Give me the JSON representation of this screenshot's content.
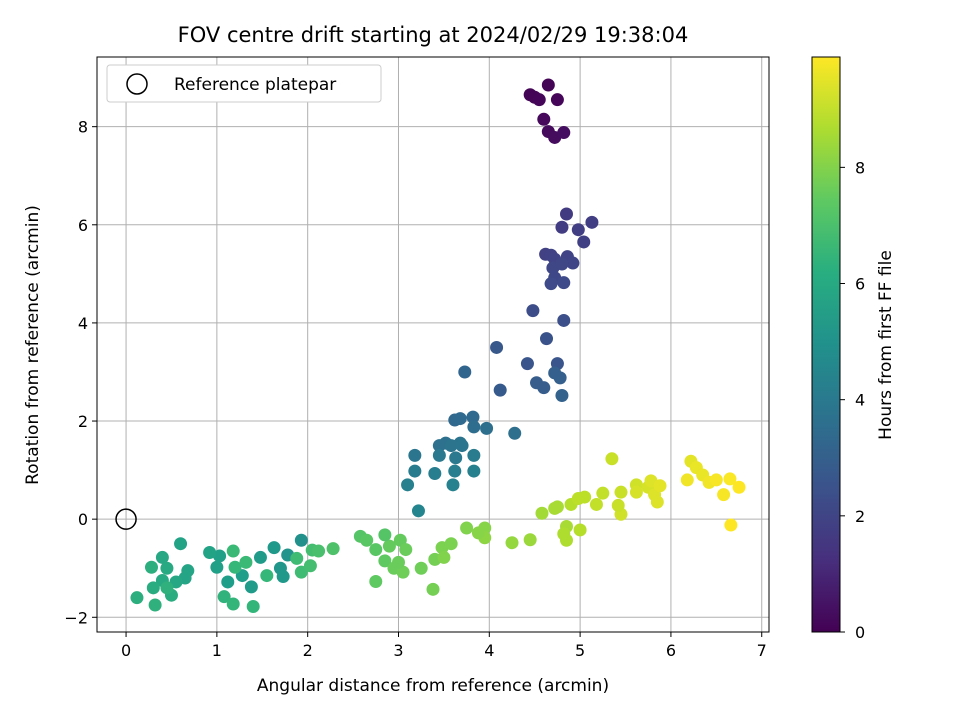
{
  "chart_data": {
    "type": "scatter",
    "title": "FOV centre drift starting at 2024/02/29 19:38:04",
    "xlabel": "Angular distance from reference (arcmin)",
    "ylabel": "Rotation from reference (arcmin)",
    "xlim": [
      -0.32,
      7.08
    ],
    "ylim": [
      -2.3,
      9.42
    ],
    "xticks": [
      0,
      1,
      2,
      3,
      4,
      5,
      6,
      7
    ],
    "yticks": [
      -2,
      0,
      2,
      4,
      6,
      8
    ],
    "grid": true,
    "legend": {
      "placement": "top-left",
      "entries": [
        "Reference platepar"
      ]
    },
    "reference_point": {
      "x": 0,
      "y": 0
    },
    "colorbar": {
      "label": "Hours from first FF file",
      "colormap": "viridis",
      "range": [
        0,
        9.9
      ],
      "ticks": [
        0,
        2,
        4,
        6,
        8
      ]
    },
    "series": [
      {
        "points": [
          [
            4.45,
            8.65,
            0.1
          ],
          [
            4.5,
            8.6,
            0.1
          ],
          [
            4.55,
            8.55,
            0.15
          ],
          [
            4.65,
            8.85,
            0.1
          ],
          [
            4.75,
            8.55,
            0.15
          ],
          [
            4.6,
            8.15,
            0.2
          ],
          [
            4.65,
            7.9,
            0.25
          ],
          [
            4.72,
            7.78,
            0.3
          ],
          [
            4.82,
            7.88,
            0.35
          ],
          [
            4.85,
            6.22,
            1.7
          ],
          [
            4.8,
            5.95,
            1.75
          ],
          [
            4.98,
            5.9,
            1.8
          ],
          [
            5.13,
            6.05,
            1.8
          ],
          [
            5.04,
            5.65,
            1.85
          ],
          [
            4.62,
            5.4,
            1.9
          ],
          [
            4.68,
            5.38,
            1.95
          ],
          [
            4.72,
            5.3,
            2.0
          ],
          [
            4.86,
            5.35,
            2.0
          ],
          [
            4.92,
            5.22,
            2.05
          ],
          [
            4.7,
            5.12,
            2.1
          ],
          [
            4.8,
            5.2,
            2.1
          ],
          [
            4.72,
            4.92,
            2.15
          ],
          [
            4.68,
            4.8,
            2.2
          ],
          [
            4.82,
            4.82,
            2.2
          ],
          [
            4.48,
            4.25,
            2.3
          ],
          [
            4.82,
            4.05,
            2.4
          ],
          [
            4.63,
            3.68,
            2.5
          ],
          [
            4.42,
            3.17,
            2.6
          ],
          [
            4.75,
            3.17,
            2.6
          ],
          [
            4.08,
            3.5,
            2.7
          ],
          [
            4.12,
            2.63,
            2.8
          ],
          [
            4.52,
            2.78,
            2.9
          ],
          [
            4.6,
            2.68,
            2.9
          ],
          [
            4.72,
            2.98,
            3.0
          ],
          [
            4.78,
            2.88,
            3.0
          ],
          [
            4.8,
            2.52,
            3.1
          ],
          [
            3.73,
            3.0,
            3.2
          ],
          [
            3.62,
            2.02,
            3.3
          ],
          [
            3.68,
            2.05,
            3.4
          ],
          [
            3.82,
            2.08,
            3.4
          ],
          [
            3.83,
            1.88,
            3.5
          ],
          [
            3.97,
            1.85,
            3.6
          ],
          [
            4.28,
            1.75,
            3.6
          ],
          [
            3.45,
            1.5,
            3.7
          ],
          [
            3.52,
            1.55,
            3.7
          ],
          [
            3.58,
            1.5,
            3.8
          ],
          [
            3.68,
            1.55,
            3.8
          ],
          [
            3.7,
            1.5,
            3.9
          ],
          [
            3.18,
            1.3,
            3.9
          ],
          [
            3.45,
            1.3,
            4.0
          ],
          [
            3.63,
            1.25,
            4.0
          ],
          [
            3.83,
            1.3,
            4.1
          ],
          [
            3.18,
            0.98,
            4.1
          ],
          [
            3.4,
            0.93,
            4.2
          ],
          [
            3.62,
            0.98,
            4.2
          ],
          [
            3.83,
            0.98,
            4.3
          ],
          [
            3.1,
            0.7,
            4.3
          ],
          [
            3.6,
            0.7,
            4.4
          ],
          [
            3.22,
            0.17,
            4.5
          ],
          [
            1.93,
            -0.43,
            5.0
          ],
          [
            1.78,
            -0.73,
            5.1
          ],
          [
            1.7,
            -1.0,
            5.2
          ],
          [
            1.73,
            -1.17,
            5.3
          ],
          [
            1.63,
            -0.58,
            5.3
          ],
          [
            1.48,
            -0.78,
            5.4
          ],
          [
            1.38,
            -1.38,
            5.4
          ],
          [
            1.28,
            -1.15,
            5.5
          ],
          [
            1.12,
            -1.28,
            5.5
          ],
          [
            1.03,
            -0.75,
            5.6
          ],
          [
            1.0,
            -0.98,
            5.6
          ],
          [
            0.92,
            -0.68,
            5.7
          ],
          [
            0.6,
            -0.5,
            5.7
          ],
          [
            0.68,
            -1.05,
            5.8
          ],
          [
            0.65,
            -1.2,
            5.8
          ],
          [
            0.55,
            -1.28,
            5.9
          ],
          [
            0.4,
            -0.78,
            5.9
          ],
          [
            0.45,
            -1.0,
            6.0
          ],
          [
            0.4,
            -1.25,
            6.0
          ],
          [
            0.5,
            -1.55,
            6.1
          ],
          [
            0.3,
            -1.4,
            6.1
          ],
          [
            0.28,
            -0.98,
            6.2
          ],
          [
            0.12,
            -1.6,
            6.2
          ],
          [
            0.32,
            -1.75,
            6.3
          ],
          [
            0.45,
            -1.4,
            6.3
          ],
          [
            1.08,
            -1.58,
            6.4
          ],
          [
            1.18,
            -1.73,
            6.5
          ],
          [
            1.4,
            -1.78,
            6.5
          ],
          [
            1.55,
            -1.15,
            6.6
          ],
          [
            1.2,
            -0.98,
            6.6
          ],
          [
            1.32,
            -0.88,
            6.7
          ],
          [
            1.18,
            -0.65,
            6.7
          ],
          [
            1.88,
            -0.8,
            6.8
          ],
          [
            1.93,
            -1.08,
            6.8
          ],
          [
            2.03,
            -0.95,
            6.9
          ],
          [
            2.05,
            -0.63,
            6.9
          ],
          [
            2.12,
            -0.65,
            7.0
          ],
          [
            2.28,
            -0.6,
            7.1
          ],
          [
            2.58,
            -0.35,
            7.2
          ],
          [
            2.65,
            -0.43,
            7.3
          ],
          [
            2.75,
            -0.62,
            7.3
          ],
          [
            2.85,
            -0.85,
            7.4
          ],
          [
            2.75,
            -1.27,
            7.4
          ],
          [
            2.9,
            -0.55,
            7.5
          ],
          [
            3.02,
            -0.43,
            7.5
          ],
          [
            3.08,
            -0.62,
            7.6
          ],
          [
            2.95,
            -1.0,
            7.6
          ],
          [
            3.05,
            -1.08,
            7.7
          ],
          [
            3.25,
            -1.0,
            7.7
          ],
          [
            3.38,
            -1.43,
            7.8
          ],
          [
            3.4,
            -0.82,
            7.8
          ],
          [
            3.48,
            -0.58,
            7.9
          ],
          [
            3.58,
            -0.5,
            7.9
          ],
          [
            3.5,
            -0.78,
            8.0
          ],
          [
            3.75,
            -0.18,
            8.0
          ],
          [
            3.95,
            -0.18,
            8.1
          ],
          [
            3.95,
            -0.38,
            8.2
          ],
          [
            4.25,
            -0.48,
            8.3
          ],
          [
            4.45,
            -0.42,
            8.4
          ],
          [
            4.58,
            0.12,
            8.5
          ],
          [
            4.75,
            0.25,
            8.6
          ],
          [
            4.85,
            -0.15,
            8.6
          ],
          [
            4.82,
            -0.3,
            8.7
          ],
          [
            4.85,
            -0.43,
            8.7
          ],
          [
            4.9,
            0.3,
            8.8
          ],
          [
            5.0,
            -0.22,
            8.8
          ],
          [
            4.98,
            0.42,
            8.9
          ],
          [
            5.05,
            0.45,
            8.9
          ],
          [
            5.18,
            0.3,
            9.0
          ],
          [
            5.25,
            0.53,
            9.0
          ],
          [
            5.35,
            1.23,
            9.1
          ],
          [
            5.45,
            0.55,
            9.1
          ],
          [
            5.45,
            0.1,
            9.2
          ],
          [
            5.62,
            0.7,
            9.2
          ],
          [
            5.62,
            0.55,
            9.3
          ],
          [
            5.75,
            0.65,
            9.3
          ],
          [
            5.78,
            0.78,
            9.4
          ],
          [
            5.82,
            0.5,
            9.4
          ],
          [
            5.88,
            0.68,
            9.5
          ],
          [
            6.22,
            1.18,
            9.5
          ],
          [
            6.28,
            1.05,
            9.6
          ],
          [
            6.35,
            0.9,
            9.6
          ],
          [
            6.18,
            0.8,
            9.7
          ],
          [
            6.42,
            0.75,
            9.7
          ],
          [
            6.5,
            0.8,
            9.8
          ],
          [
            6.58,
            0.5,
            9.8
          ],
          [
            6.65,
            0.82,
            9.85
          ],
          [
            6.75,
            0.65,
            9.9
          ],
          [
            6.66,
            -0.12,
            9.9
          ],
          [
            5.85,
            0.35,
            9.4
          ],
          [
            5.42,
            0.28,
            9.1
          ],
          [
            4.72,
            0.22,
            8.6
          ],
          [
            3.88,
            -0.28,
            8.1
          ],
          [
            3.0,
            -0.88,
            7.6
          ],
          [
            2.85,
            -0.32,
            7.2
          ]
        ]
      }
    ]
  }
}
